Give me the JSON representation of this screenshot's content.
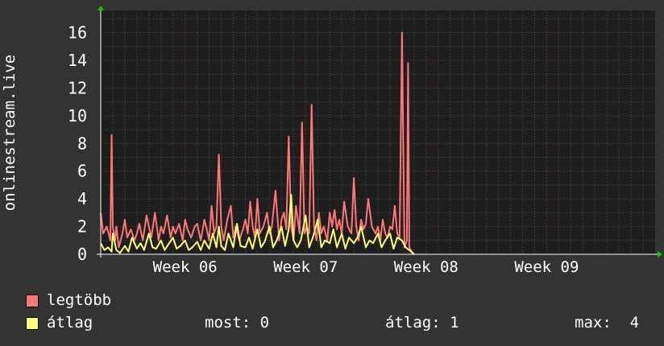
{
  "colors": {
    "background": "#333333",
    "plot_bg": "#1e1e1e",
    "max_series": "#ff7777",
    "avg_series": "#ffff77",
    "grid_major": "#7a3333",
    "arrow": "#00cc00"
  },
  "chart_data": {
    "type": "line",
    "ylabel": "onlinestream.live",
    "ylim": [
      0,
      17.6
    ],
    "yticks": [
      "0",
      "2",
      "4",
      "6",
      "8",
      "10",
      "12",
      "14",
      "16"
    ],
    "xlim": [
      0,
      46
    ],
    "xticks": [
      {
        "label": "Week 06",
        "x": 7
      },
      {
        "label": "Week 07",
        "x": 17
      },
      {
        "label": "Week 08",
        "x": 27
      },
      {
        "label": "Week 09",
        "x": 37
      }
    ],
    "grid": true,
    "series": [
      {
        "name": "legtöbb",
        "x": [
          0.0,
          0.2,
          0.5,
          0.8,
          0.9,
          1.0,
          1.2,
          1.3,
          1.5,
          1.8,
          2.0,
          2.2,
          2.5,
          2.8,
          3.0,
          3.2,
          3.5,
          3.8,
          4.0,
          4.2,
          4.5,
          4.8,
          5.0,
          5.2,
          5.5,
          5.8,
          6.0,
          6.2,
          6.5,
          6.8,
          7.0,
          7.2,
          7.5,
          7.8,
          8.0,
          8.3,
          8.6,
          8.8,
          9.0,
          9.2,
          9.4,
          9.6,
          9.8,
          10.0,
          10.2,
          10.5,
          10.8,
          11.0,
          11.2,
          11.5,
          11.8,
          12.0,
          12.2,
          12.4,
          12.6,
          12.8,
          13.0,
          13.2,
          13.5,
          13.8,
          14.0,
          14.2,
          14.5,
          14.8,
          15.0,
          15.2,
          15.4,
          15.6,
          15.8,
          16.0,
          16.2,
          16.5,
          16.7,
          16.9,
          17.1,
          17.3,
          17.5,
          17.7,
          17.9,
          18.1,
          18.3,
          18.5,
          18.8,
          19.0,
          19.2,
          19.4,
          19.6,
          19.8,
          20.0,
          20.2,
          20.5,
          20.8,
          21.0,
          21.2,
          21.4,
          21.6,
          21.8,
          22.0,
          22.2,
          22.5,
          22.8,
          23.0,
          23.2,
          23.4,
          23.6,
          23.8,
          24.0,
          24.2,
          24.4,
          24.6,
          24.8,
          25.0,
          25.2,
          25.4,
          25.5,
          25.6,
          25.8,
          26.0
        ],
        "values": [
          3.0,
          1.5,
          2.0,
          1.0,
          8.6,
          2.0,
          1.0,
          2.0,
          0.5,
          1.5,
          2.5,
          1.2,
          1.8,
          1.0,
          1.5,
          2.2,
          1.0,
          2.8,
          2.0,
          1.2,
          3.0,
          1.0,
          2.0,
          1.5,
          2.8,
          1.2,
          2.0,
          1.5,
          2.2,
          1.0,
          2.5,
          1.8,
          1.2,
          2.0,
          2.2,
          1.0,
          2.5,
          1.8,
          1.0,
          3.5,
          1.5,
          2.0,
          7.2,
          2.0,
          1.0,
          2.5,
          3.5,
          1.2,
          2.0,
          1.0,
          1.8,
          2.5,
          1.5,
          3.8,
          2.0,
          1.2,
          4.0,
          1.5,
          2.0,
          3.0,
          1.5,
          2.0,
          4.6,
          1.0,
          2.5,
          3.0,
          1.8,
          8.5,
          2.0,
          1.0,
          3.5,
          1.5,
          9.5,
          1.5,
          2.0,
          1.5,
          10.8,
          2.0,
          1.0,
          3.0,
          1.5,
          2.0,
          1.0,
          3.0,
          2.0,
          3.2,
          1.8,
          2.5,
          1.5,
          3.8,
          2.0,
          1.5,
          5.5,
          2.0,
          1.0,
          2.5,
          1.8,
          2.2,
          4.0,
          2.0,
          1.5,
          2.0,
          1.0,
          2.5,
          1.5,
          1.2,
          2.0,
          1.8,
          3.5,
          1.5,
          1.2,
          16.0,
          0.5,
          1.0,
          13.8,
          0.5,
          0.2,
          0.0
        ]
      },
      {
        "name": "átlag",
        "x": [
          0.0,
          0.3,
          0.6,
          0.9,
          1.0,
          1.3,
          1.6,
          2.0,
          2.3,
          2.6,
          3.0,
          3.3,
          3.6,
          4.0,
          4.3,
          4.6,
          5.0,
          5.3,
          5.6,
          6.0,
          6.3,
          6.6,
          7.0,
          7.3,
          7.6,
          8.0,
          8.3,
          8.6,
          9.0,
          9.3,
          9.6,
          9.8,
          10.0,
          10.3,
          10.6,
          11.0,
          11.3,
          11.6,
          12.0,
          12.3,
          12.6,
          13.0,
          13.3,
          13.6,
          14.0,
          14.3,
          14.6,
          15.0,
          15.3,
          15.6,
          15.8,
          16.0,
          16.3,
          16.6,
          17.0,
          17.3,
          17.6,
          18.0,
          18.3,
          18.6,
          19.0,
          19.3,
          19.6,
          20.0,
          20.3,
          20.6,
          21.0,
          21.3,
          21.6,
          22.0,
          22.3,
          22.6,
          23.0,
          23.3,
          23.6,
          24.0,
          24.3,
          24.6,
          25.0,
          25.3,
          25.6,
          26.0
        ],
        "values": [
          0.8,
          0.3,
          0.5,
          0.2,
          1.5,
          0.3,
          0.1,
          0.6,
          0.2,
          1.2,
          0.4,
          0.8,
          0.3,
          1.5,
          0.5,
          0.4,
          1.0,
          0.3,
          0.7,
          1.2,
          0.4,
          0.6,
          1.0,
          0.3,
          0.5,
          0.9,
          0.3,
          1.0,
          0.4,
          1.5,
          0.5,
          2.0,
          0.6,
          0.3,
          1.5,
          0.5,
          2.2,
          0.6,
          0.5,
          1.2,
          0.4,
          1.8,
          0.5,
          0.9,
          2.0,
          0.5,
          1.0,
          2.0,
          0.6,
          1.8,
          4.3,
          1.0,
          0.5,
          1.0,
          2.8,
          0.5,
          1.2,
          2.5,
          0.5,
          1.0,
          0.8,
          1.8,
          0.5,
          1.5,
          0.4,
          1.2,
          0.8,
          1.2,
          2.0,
          0.5,
          1.0,
          0.8,
          1.5,
          0.5,
          1.0,
          1.5,
          0.4,
          1.2,
          1.0,
          0.5,
          0.3,
          0.0
        ]
      }
    ]
  },
  "legend": {
    "items": [
      {
        "label": "legtöbb"
      },
      {
        "label": "átlag"
      }
    ],
    "stats": {
      "most": "most: 0",
      "atlag": "átlag: 1",
      "max": "max:  4"
    }
  }
}
